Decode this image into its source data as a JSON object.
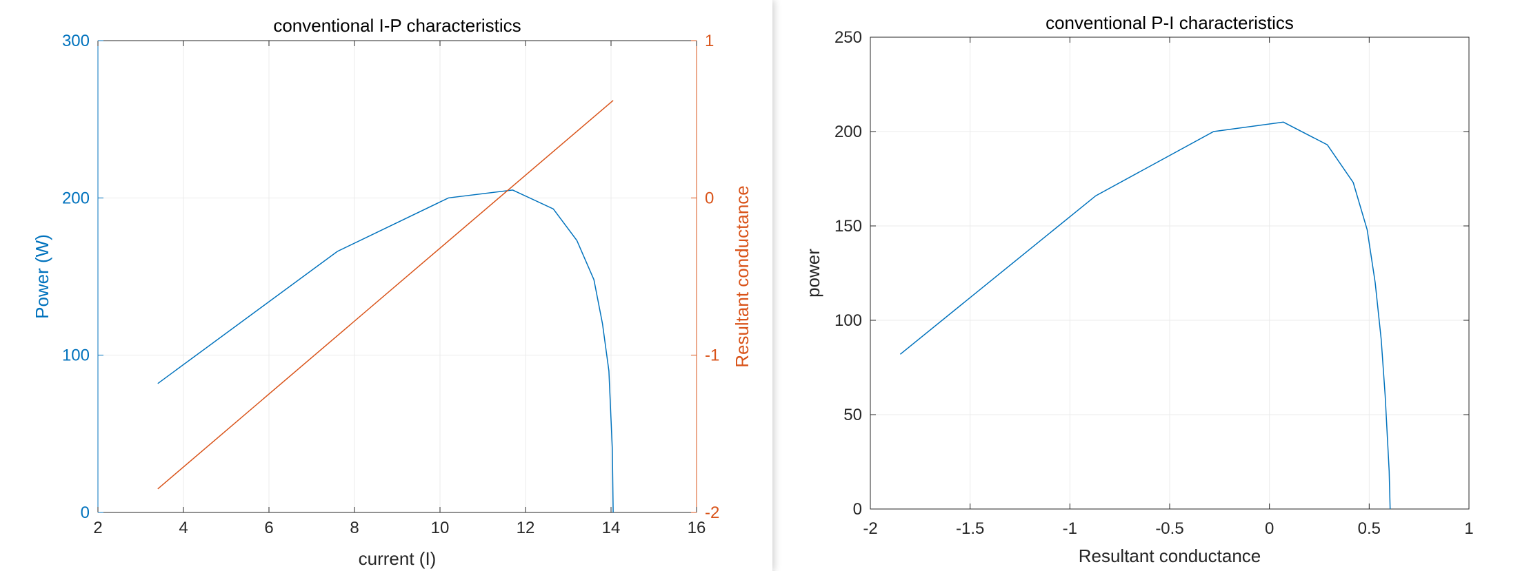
{
  "chart_data": [
    {
      "type": "line",
      "title": "conventional I-P characteristics",
      "xlabel": "current (I)",
      "xlim": [
        2,
        16
      ],
      "xticks": [
        2,
        4,
        6,
        8,
        10,
        12,
        14,
        16
      ],
      "y_left": {
        "label": "Power (W)",
        "lim": [
          0,
          300
        ],
        "ticks": [
          0,
          100,
          200,
          300
        ],
        "color": "#0072BD"
      },
      "y_right": {
        "label": "Resultant conductance",
        "lim": [
          -2,
          1
        ],
        "ticks": [
          -2,
          -1,
          0,
          1
        ],
        "color": "#D95319"
      },
      "grid": true,
      "series": [
        {
          "axis": "left",
          "color": "#0072BD",
          "x": [
            3.4,
            7.6,
            10.2,
            11.7,
            12.65,
            13.2,
            13.6,
            13.8,
            13.95,
            14.03,
            14.05
          ],
          "y": [
            82,
            166,
            200,
            205,
            193,
            173,
            148,
            120,
            90,
            40,
            0
          ]
        },
        {
          "axis": "right",
          "color": "#D95319",
          "x": [
            3.4,
            14.05
          ],
          "y": [
            -1.85,
            0.62
          ]
        }
      ]
    },
    {
      "type": "line",
      "title": "conventional P-I characteristics",
      "xlabel": "Resultant conductance",
      "ylabel": "power",
      "xlim": [
        -2,
        1
      ],
      "xticks": [
        -2,
        -1.5,
        -1,
        -0.5,
        0,
        0.5,
        1
      ],
      "ylim": [
        0,
        250
      ],
      "yticks": [
        0,
        50,
        100,
        150,
        200,
        250
      ],
      "grid": true,
      "series": [
        {
          "color": "#0072BD",
          "x": [
            -1.85,
            -0.87,
            -0.28,
            0.07,
            0.29,
            0.42,
            0.49,
            0.53,
            0.56,
            0.58,
            0.6,
            0.605
          ],
          "y": [
            82,
            166,
            200,
            205,
            193,
            173,
            148,
            120,
            90,
            60,
            20,
            0
          ]
        }
      ]
    }
  ]
}
